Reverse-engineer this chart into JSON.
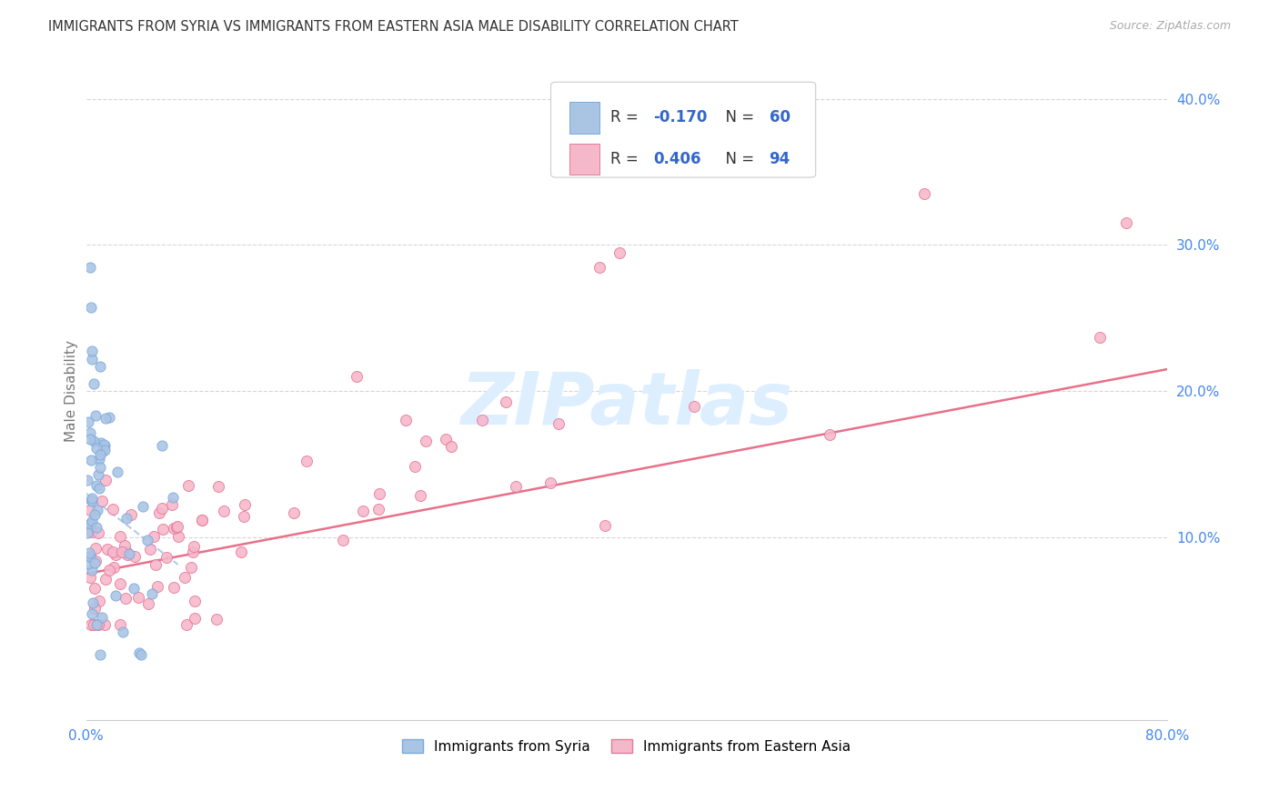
{
  "title": "IMMIGRANTS FROM SYRIA VS IMMIGRANTS FROM EASTERN ASIA MALE DISABILITY CORRELATION CHART",
  "source": "Source: ZipAtlas.com",
  "ylabel": "Male Disability",
  "xlim": [
    0.0,
    0.8
  ],
  "ylim": [
    -0.025,
    0.425
  ],
  "background": "#ffffff",
  "grid_color": "#cccccc",
  "title_color": "#333333",
  "axis_label_color": "#777777",
  "tick_color": "#4488ee",
  "syria_color": "#aac4e4",
  "syria_edge": "#7aaadd",
  "eastern_asia_color": "#f5b8cb",
  "eastern_asia_edge": "#e87898",
  "trendline_syria_color": "#aac4e4",
  "trendline_ea_color": "#e8708a",
  "watermark_color": "#ddeeff",
  "legend_box_edge": "#cccccc",
  "legend_r_color": "#333333",
  "legend_val_color": "#3366cc",
  "source_color": "#aaaaaa"
}
